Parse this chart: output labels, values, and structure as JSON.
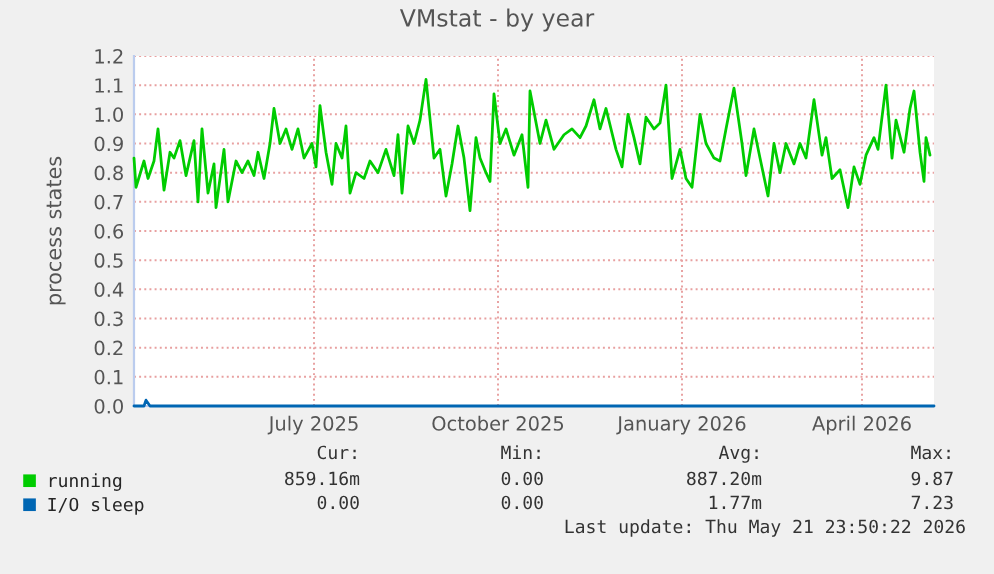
{
  "chart_data": {
    "type": "line",
    "title": "VMstat - by year",
    "ylabel": "process states",
    "xlim": [
      "2025-04-16",
      "2026-05-21"
    ],
    "xticks": [
      {
        "value": "2025-07-15",
        "label": "July 2025"
      },
      {
        "value": "2025-10-15",
        "label": "October 2025"
      },
      {
        "value": "2026-01-15",
        "label": "January 2026"
      },
      {
        "value": "2026-04-15",
        "label": "April 2026"
      }
    ],
    "ylim": [
      0,
      1.2
    ],
    "yticks": [
      {
        "value": 0,
        "label": "0.0"
      },
      {
        "value": 0.1,
        "label": "0.1"
      },
      {
        "value": 0.2,
        "label": "0.2"
      },
      {
        "value": 0.3,
        "label": "0.3"
      },
      {
        "value": 0.4,
        "label": "0.4"
      },
      {
        "value": 0.5,
        "label": "0.5"
      },
      {
        "value": 0.6,
        "label": "0.6"
      },
      {
        "value": 0.7,
        "label": "0.7"
      },
      {
        "value": 0.8,
        "label": "0.8"
      },
      {
        "value": 0.9,
        "label": "0.9"
      },
      {
        "value": 1.0,
        "label": "1.0"
      },
      {
        "value": 1.1,
        "label": "1.1"
      },
      {
        "value": 1.2,
        "label": "1.2"
      }
    ],
    "grid": true,
    "legend": "bottom",
    "marker": "none",
    "line_style": "solid",
    "series": [
      {
        "name": "running",
        "color": "#00cc00",
        "x": [
          "2025-04-16",
          "2025-04-17",
          "2025-04-21",
          "2025-04-23",
          "2025-04-26",
          "2025-04-28",
          "2025-05-01",
          "2025-05-04",
          "2025-05-06",
          "2025-05-09",
          "2025-05-12",
          "2025-05-16",
          "2025-05-18",
          "2025-05-20",
          "2025-05-23",
          "2025-05-26",
          "2025-05-27",
          "2025-05-31",
          "2025-06-02",
          "2025-06-06",
          "2025-06-09",
          "2025-06-12",
          "2025-06-15",
          "2025-06-17",
          "2025-06-20",
          "2025-06-23",
          "2025-06-25",
          "2025-06-28",
          "2025-07-01",
          "2025-07-04",
          "2025-07-07",
          "2025-07-10",
          "2025-07-14",
          "2025-07-16",
          "2025-07-18",
          "2025-07-21",
          "2025-07-24",
          "2025-07-26",
          "2025-07-29",
          "2025-07-31",
          "2025-08-02",
          "2025-08-05",
          "2025-08-09",
          "2025-08-12",
          "2025-08-16",
          "2025-08-20",
          "2025-08-24",
          "2025-08-26",
          "2025-08-28",
          "2025-08-31",
          "2025-09-03",
          "2025-09-06",
          "2025-09-09",
          "2025-09-13",
          "2025-09-16",
          "2025-09-19",
          "2025-09-22",
          "2025-09-25",
          "2025-09-28",
          "2025-10-01",
          "2025-10-04",
          "2025-10-06",
          "2025-10-09",
          "2025-10-11",
          "2025-10-13",
          "2025-10-16",
          "2025-10-19",
          "2025-10-23",
          "2025-10-27",
          "2025-10-30",
          "2025-10-31",
          "2025-11-05",
          "2025-11-08",
          "2025-11-12",
          "2025-11-17",
          "2025-11-21",
          "2025-11-25",
          "2025-11-28",
          "2025-12-02",
          "2025-12-05",
          "2025-12-08",
          "2025-12-13",
          "2025-12-16",
          "2025-12-19",
          "2025-12-22",
          "2025-12-25",
          "2025-12-28",
          "2026-01-01",
          "2026-01-04",
          "2026-01-07",
          "2026-01-10",
          "2026-01-14",
          "2026-01-17",
          "2026-01-20",
          "2026-01-24",
          "2026-01-27",
          "2026-01-31",
          "2026-02-03",
          "2026-02-06",
          "2026-02-10",
          "2026-02-14",
          "2026-02-16",
          "2026-02-20",
          "2026-02-23",
          "2026-02-27",
          "2026-03-02",
          "2026-03-05",
          "2026-03-08",
          "2026-03-12",
          "2026-03-15",
          "2026-03-18",
          "2026-03-22",
          "2026-03-26",
          "2026-03-28",
          "2026-03-31",
          "2026-04-04",
          "2026-04-08",
          "2026-04-11",
          "2026-04-14",
          "2026-04-17",
          "2026-04-21",
          "2026-04-23",
          "2026-04-27",
          "2026-04-30",
          "2026-05-02",
          "2026-05-06",
          "2026-05-09",
          "2026-05-11",
          "2026-05-14",
          "2026-05-16",
          "2026-05-17",
          "2026-05-19"
        ],
        "values": [
          0.85,
          0.75,
          0.84,
          0.78,
          0.84,
          0.95,
          0.74,
          0.87,
          0.85,
          0.91,
          0.79,
          0.91,
          0.7,
          0.95,
          0.73,
          0.83,
          0.68,
          0.88,
          0.7,
          0.84,
          0.8,
          0.84,
          0.79,
          0.87,
          0.78,
          0.9,
          1.02,
          0.9,
          0.95,
          0.88,
          0.95,
          0.85,
          0.9,
          0.82,
          1.03,
          0.87,
          0.76,
          0.9,
          0.85,
          0.96,
          0.73,
          0.8,
          0.78,
          0.84,
          0.8,
          0.88,
          0.79,
          0.93,
          0.73,
          0.96,
          0.9,
          0.98,
          1.12,
          0.85,
          0.88,
          0.72,
          0.83,
          0.96,
          0.85,
          0.67,
          0.92,
          0.85,
          0.8,
          0.77,
          1.07,
          0.9,
          0.95,
          0.86,
          0.93,
          0.75,
          1.08,
          0.9,
          0.98,
          0.88,
          0.93,
          0.95,
          0.92,
          0.96,
          1.05,
          0.95,
          1.02,
          0.88,
          0.82,
          1.0,
          0.92,
          0.83,
          0.99,
          0.95,
          0.97,
          1.1,
          0.78,
          0.88,
          0.78,
          0.75,
          1.0,
          0.9,
          0.85,
          0.84,
          0.95,
          1.09,
          0.9,
          0.79,
          0.95,
          0.85,
          0.72,
          0.9,
          0.8,
          0.9,
          0.83,
          0.9,
          0.85,
          1.05,
          0.86,
          0.92,
          0.78,
          0.81,
          0.68,
          0.82,
          0.76,
          0.86,
          0.92,
          0.88,
          1.1,
          0.85,
          0.98,
          0.87,
          1.02,
          1.08,
          0.87,
          0.77,
          0.92,
          0.86
        ]
      },
      {
        "name": "I/O sleep",
        "color": "#0066b3",
        "x": [
          "2025-04-16",
          "2025-04-21",
          "2025-04-22",
          "2025-04-24",
          "2025-06-01",
          "2026-05-21"
        ],
        "values": [
          0,
          0,
          0.02,
          0,
          0,
          0
        ]
      }
    ],
    "annotations": [
      "Cur:",
      "Min:",
      "Avg:",
      "Max:",
      "859.16m",
      "0.00",
      "887.20m",
      "9.87",
      "0.00",
      "0.00",
      "1.77m",
      "7.23",
      "Last update: Thu May 21 23:50:22 2026"
    ]
  }
}
